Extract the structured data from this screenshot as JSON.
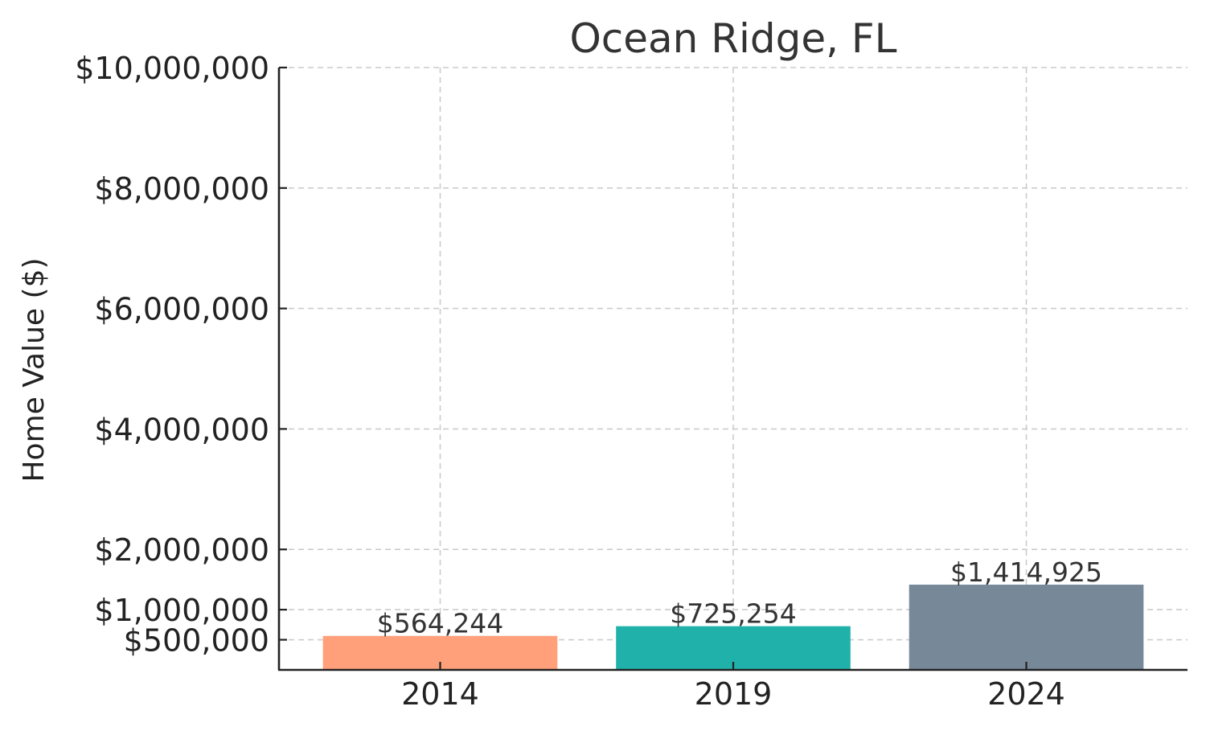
{
  "chart_data": {
    "type": "bar",
    "title": "Ocean Ridge, FL",
    "xlabel": "",
    "ylabel": "Home Value ($)",
    "categories": [
      "2014",
      "2019",
      "2024"
    ],
    "values": [
      564244,
      725254,
      1414925
    ],
    "value_labels": [
      "$564,244",
      "$725,254",
      "$1,414,925"
    ],
    "colors": [
      "#FFA07A",
      "#20B2AA",
      "#778899"
    ],
    "ylim": [
      0,
      10000000
    ],
    "yticks": [
      500000,
      1000000,
      2000000,
      4000000,
      6000000,
      8000000,
      10000000
    ],
    "ytick_labels": [
      "$500,000",
      "$1,000,000",
      "$2,000,000",
      "$4,000,000",
      "$6,000,000",
      "$8,000,000",
      "$10,000,000"
    ],
    "grid": true,
    "legend": "none"
  }
}
